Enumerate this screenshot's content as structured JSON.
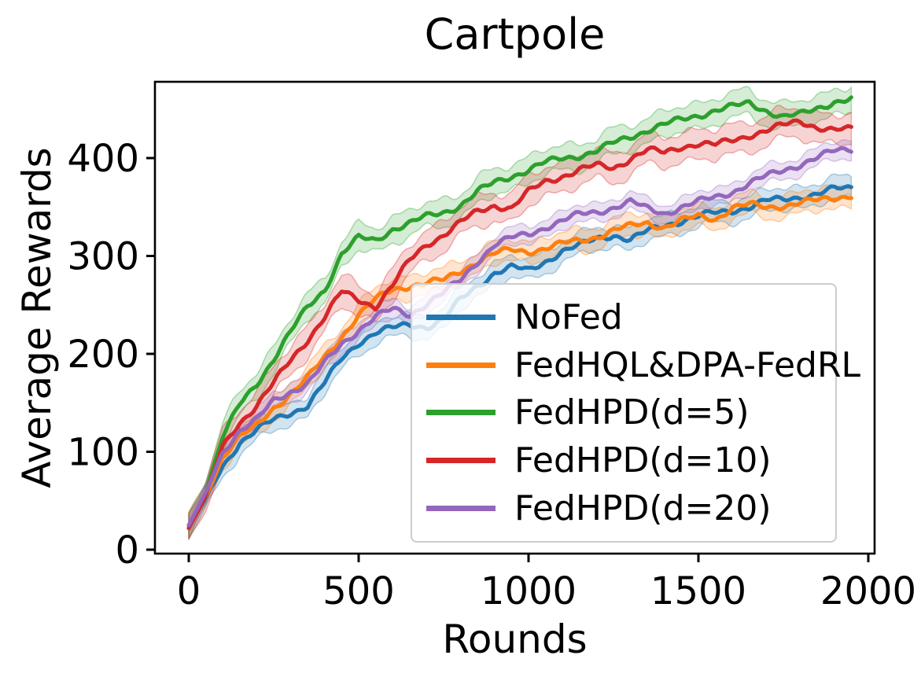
{
  "figure": {
    "title": "Cartpole",
    "xlabel": "Rounds",
    "ylabel": "Average Rewards"
  },
  "chart_data": {
    "type": "line",
    "title": "Cartpole",
    "xlabel": "Rounds",
    "ylabel": "Average Rewards",
    "xlim": [
      -100,
      2017
    ],
    "ylim": [
      -4,
      478
    ],
    "x_ticks": [
      0,
      500,
      1000,
      1500,
      2000
    ],
    "y_ticks": [
      0,
      100,
      200,
      300,
      400
    ],
    "grid": false,
    "legend_position": "inside lower-right",
    "shaded_confidence_bands": true,
    "x": [
      0,
      50,
      100,
      150,
      200,
      250,
      300,
      350,
      400,
      450,
      500,
      550,
      600,
      650,
      700,
      750,
      800,
      850,
      900,
      950,
      1000,
      1050,
      1100,
      1150,
      1200,
      1250,
      1300,
      1350,
      1400,
      1450,
      1500,
      1550,
      1600,
      1650,
      1700,
      1750,
      1800,
      1850,
      1900,
      1950
    ],
    "series": [
      {
        "name": "NoFed",
        "color": "#1f77b4",
        "band_halfwidth": 11,
        "values": [
          25,
          52,
          85,
          110,
          122,
          132,
          140,
          148,
          170,
          195,
          212,
          222,
          226,
          230,
          228,
          235,
          255,
          270,
          283,
          288,
          285,
          295,
          305,
          310,
          318,
          322,
          316,
          325,
          332,
          336,
          340,
          344,
          347,
          350,
          356,
          358,
          361,
          363,
          368,
          370
        ]
      },
      {
        "name": "FedHQL&DPA-FedRL",
        "color": "#ff7f0e",
        "band_halfwidth": 11,
        "values": [
          25,
          55,
          95,
          115,
          126,
          145,
          160,
          175,
          196,
          218,
          240,
          255,
          266,
          270,
          272,
          275,
          285,
          295,
          302,
          306,
          305,
          308,
          312,
          316,
          320,
          326,
          330,
          334,
          330,
          336,
          340,
          338,
          350,
          352,
          349,
          352,
          355,
          356,
          359,
          363
        ]
      },
      {
        "name": "FedHPD(d=5)",
        "color": "#2ca02c",
        "band_halfwidth": 13,
        "values": [
          22,
          60,
          115,
          148,
          170,
          195,
          222,
          248,
          266,
          302,
          318,
          316,
          328,
          333,
          340,
          345,
          352,
          365,
          375,
          382,
          388,
          395,
          400,
          403,
          407,
          415,
          422,
          429,
          434,
          439,
          444,
          449,
          452,
          456,
          449,
          442,
          444,
          451,
          458,
          460
        ]
      },
      {
        "name": "FedHPD(d=10)",
        "color": "#d62728",
        "band_halfwidth": 15,
        "values": [
          22,
          55,
          105,
          130,
          148,
          170,
          193,
          215,
          238,
          263,
          255,
          249,
          270,
          295,
          312,
          322,
          334,
          345,
          352,
          349,
          365,
          376,
          382,
          388,
          392,
          390,
          400,
          408,
          405,
          412,
          415,
          413,
          418,
          424,
          428,
          433,
          438,
          432,
          428,
          429
        ]
      },
      {
        "name": "FedHPD(d=20)",
        "color": "#9467bd",
        "band_halfwidth": 9,
        "values": [
          25,
          58,
          100,
          122,
          132,
          152,
          162,
          170,
          190,
          210,
          225,
          238,
          245,
          240,
          252,
          262,
          275,
          295,
          312,
          318,
          322,
          330,
          336,
          342,
          345,
          350,
          355,
          348,
          344,
          350,
          355,
          360,
          366,
          374,
          381,
          388,
          394,
          400,
          407,
          410
        ]
      }
    ]
  }
}
